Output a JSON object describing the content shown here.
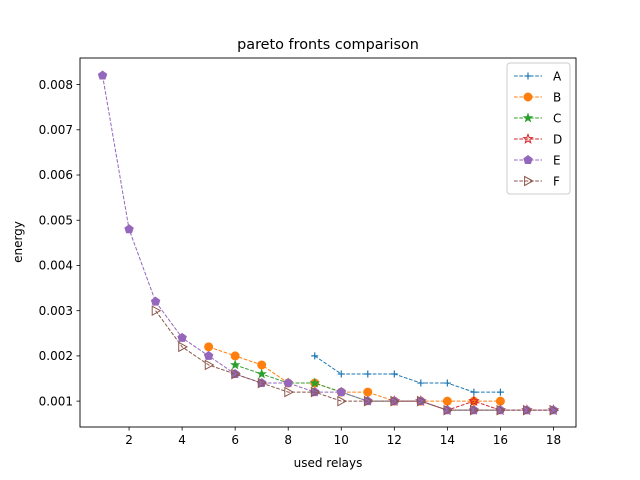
{
  "chart_data": {
    "type": "line",
    "title": "pareto fronts comparison",
    "xlabel": "used relays",
    "ylabel": "energy",
    "xlim": [
      0.15,
      18.85
    ],
    "ylim": [
      0.000428,
      0.0085875
    ],
    "xticks": [
      2,
      4,
      6,
      8,
      10,
      12,
      14,
      16,
      18
    ],
    "yticks": [
      0.001,
      0.002,
      0.003,
      0.004,
      0.005,
      0.006,
      0.007,
      0.008
    ],
    "grid": false,
    "legend_position": "top-right",
    "series": [
      {
        "name": "A",
        "color": "#1f77b4",
        "marker": "plus",
        "x": [
          9,
          10,
          11,
          12,
          13,
          14,
          15,
          16
        ],
        "y": [
          0.002,
          0.0016,
          0.0016,
          0.0016,
          0.0014,
          0.0014,
          0.0012,
          0.0012
        ]
      },
      {
        "name": "B",
        "color": "#ff7f0e",
        "marker": "circle",
        "x": [
          5,
          6,
          7,
          8,
          9,
          10,
          11,
          12,
          13,
          14,
          15,
          16
        ],
        "y": [
          0.0022,
          0.002,
          0.0018,
          0.0014,
          0.0014,
          0.0012,
          0.0012,
          0.001,
          0.001,
          0.001,
          0.001,
          0.001
        ]
      },
      {
        "name": "C",
        "color": "#2ca02c",
        "marker": "star",
        "x": [
          6,
          7,
          8,
          9,
          10,
          11,
          12,
          13,
          14,
          15,
          16
        ],
        "y": [
          0.0018,
          0.0016,
          0.0014,
          0.0014,
          0.0012,
          0.001,
          0.001,
          0.001,
          0.0008,
          0.0008,
          0.0008
        ]
      },
      {
        "name": "D",
        "color": "#d62728",
        "marker": "star-open",
        "x": [
          12,
          13,
          14,
          15,
          16,
          17,
          18
        ],
        "y": [
          0.001,
          0.001,
          0.0008,
          0.001,
          0.0008,
          0.0008,
          0.0008
        ]
      },
      {
        "name": "E",
        "color": "#9467bd",
        "marker": "pentagon",
        "x": [
          1,
          2,
          3,
          4,
          5,
          6,
          7,
          8,
          9,
          10,
          11,
          12,
          13,
          14,
          15,
          16,
          17,
          18
        ],
        "y": [
          0.0082,
          0.0048,
          0.0032,
          0.0024,
          0.002,
          0.0016,
          0.0014,
          0.0014,
          0.0012,
          0.0012,
          0.001,
          0.001,
          0.001,
          0.0008,
          0.0008,
          0.0008,
          0.0008,
          0.0008
        ]
      },
      {
        "name": "F",
        "color": "#8c564b",
        "marker": "triangle-right-open",
        "x": [
          3,
          4,
          5,
          6,
          7,
          8,
          9,
          10,
          11,
          12,
          13,
          14,
          15,
          16,
          17,
          18
        ],
        "y": [
          0.003,
          0.0022,
          0.0018,
          0.0016,
          0.0014,
          0.0012,
          0.0012,
          0.001,
          0.001,
          0.001,
          0.001,
          0.0008,
          0.0008,
          0.0008,
          0.0008,
          0.0008
        ]
      }
    ]
  }
}
